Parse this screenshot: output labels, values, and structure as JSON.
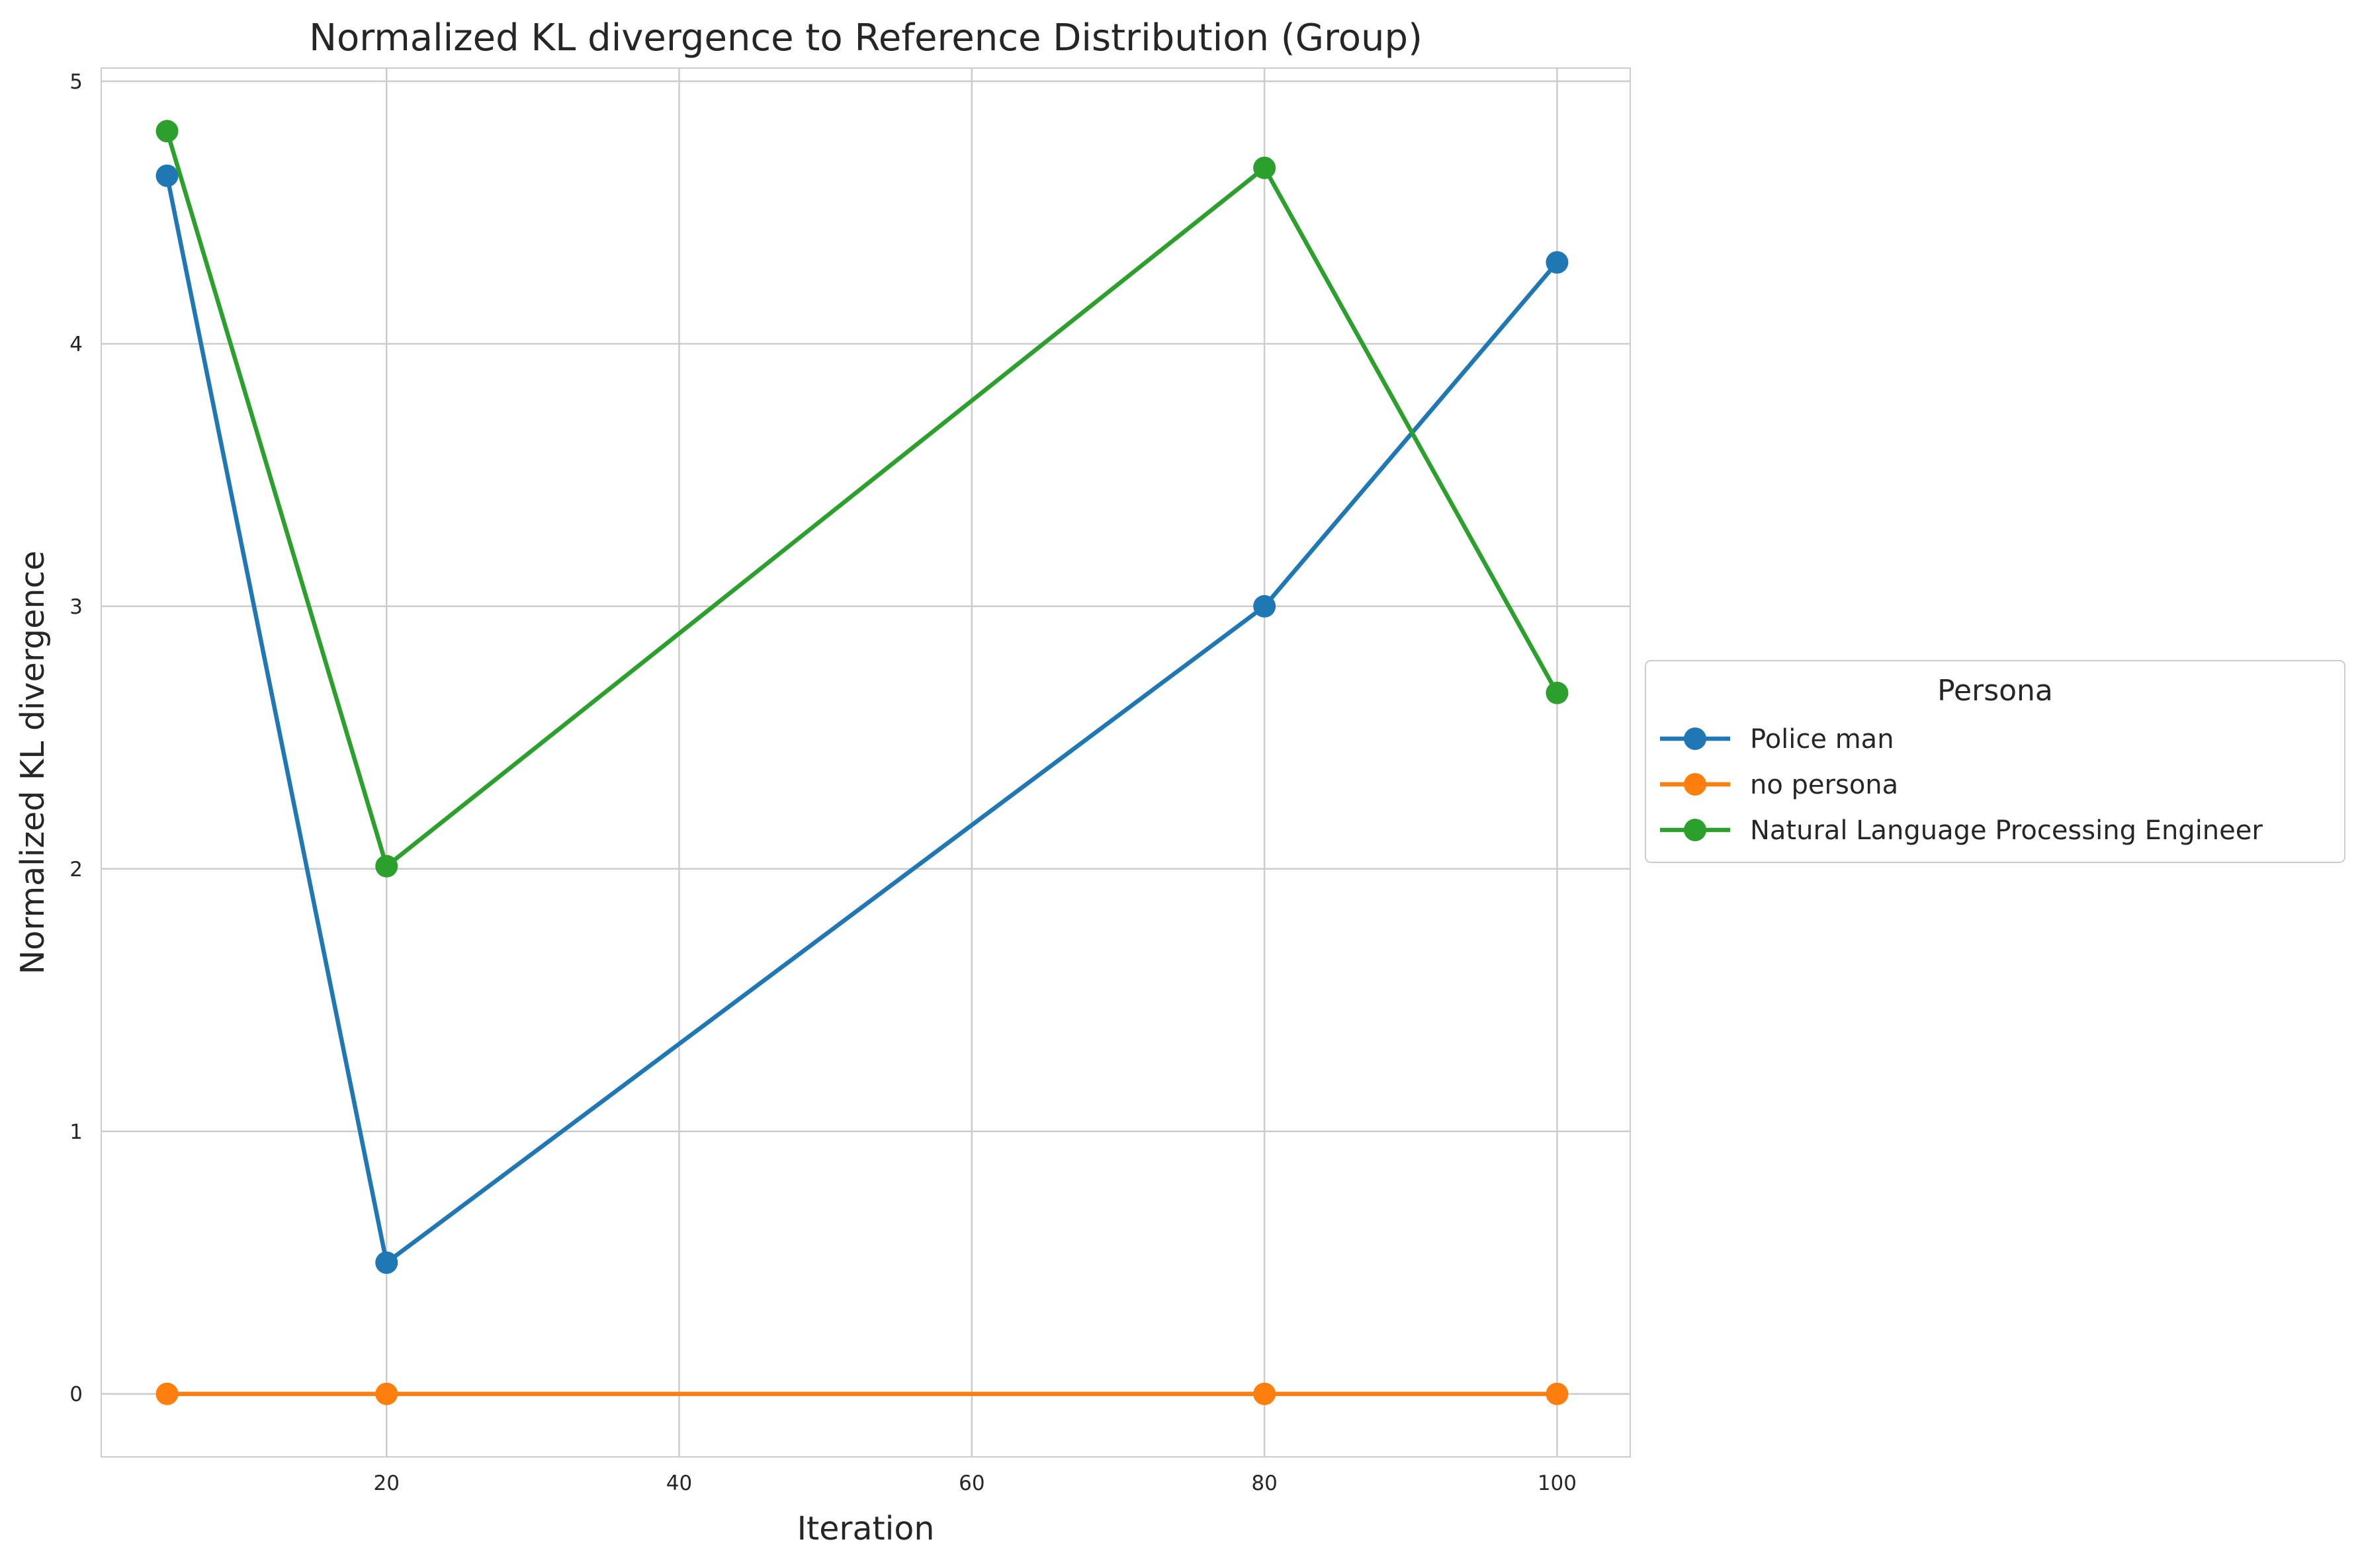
{
  "chart_data": {
    "type": "line",
    "title": "Normalized KL divergence to Reference Distribution (Group)",
    "xlabel": "Iteration",
    "ylabel": "Normalized KL divergence",
    "x": [
      5,
      20,
      80,
      100
    ],
    "xlim": [
      0.5,
      105
    ],
    "ylim": [
      -0.24,
      5.05
    ],
    "xticks": [
      20,
      40,
      60,
      80,
      100
    ],
    "yticks": [
      0,
      1,
      2,
      3,
      4,
      5
    ],
    "grid": true,
    "legend": {
      "title": "Persona",
      "placement": "center-right, outside plot"
    },
    "series": [
      {
        "name": "Police man",
        "color": "#1f77b4",
        "values": [
          4.64,
          0.5,
          3.0,
          4.31
        ]
      },
      {
        "name": "no persona",
        "color": "#ff7f0e",
        "values": [
          0,
          0,
          0,
          0
        ]
      },
      {
        "name": "Natural Language Processing Engineer",
        "color": "#2ca02c",
        "values": [
          4.81,
          2.01,
          4.67,
          2.67
        ]
      }
    ]
  }
}
